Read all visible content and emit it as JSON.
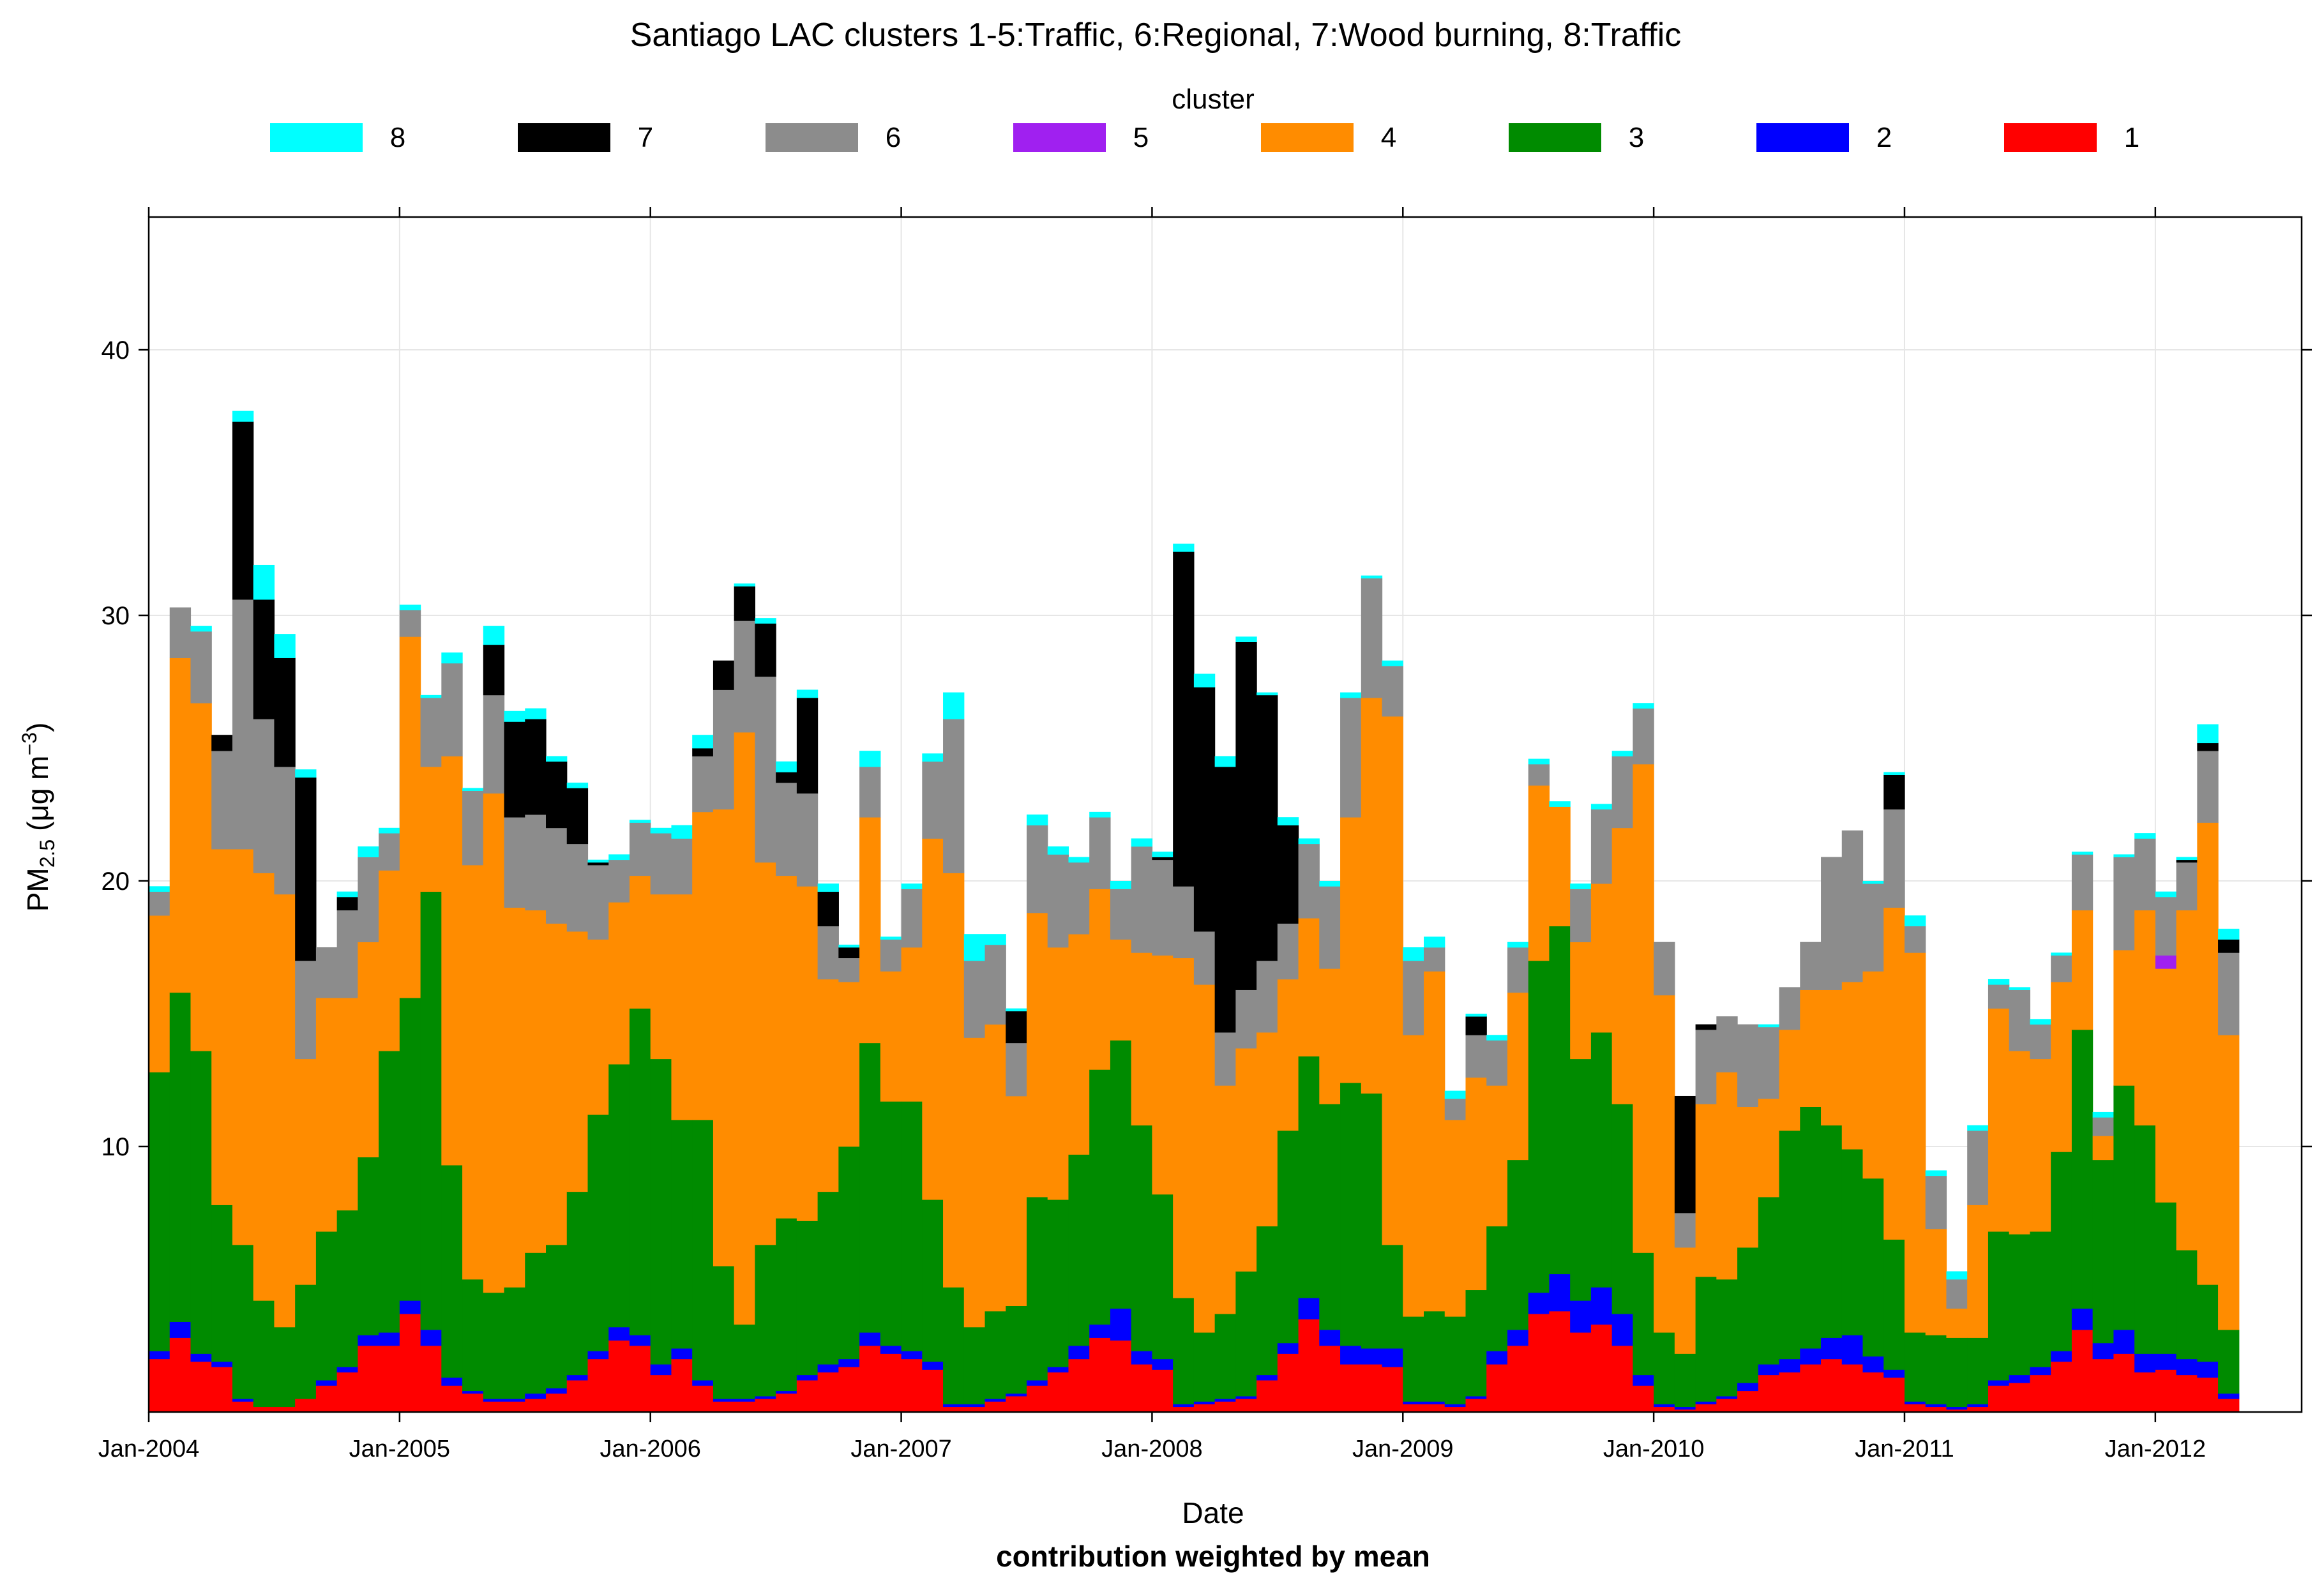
{
  "chart_data": {
    "type": "area",
    "title": "Santiago LAC clusters 1-5:Traffic, 6:Regional, 7:Wood burning, 8:Traffic",
    "xlabel": "Date",
    "subtitle": "contribution weighted by mean",
    "ylabel": {
      "main": "PM",
      "sub": "2.5",
      "units_pre": " (μg m",
      "units_sup": "−3",
      "units_post": ")"
    },
    "legend_title": "cluster",
    "legend_order": [
      "8",
      "7",
      "6",
      "5",
      "4",
      "3",
      "2",
      "1"
    ],
    "colors": {
      "1": "#FF0000",
      "2": "#0000FF",
      "3": "#008B00",
      "4": "#FF8C00",
      "5": "#A020F0",
      "6": "#8C8C8C",
      "7": "#000000",
      "8": "#00FFFF"
    },
    "x_ticks": [
      "Jan-2004",
      "Jan-2005",
      "Jan-2006",
      "Jan-2007",
      "Jan-2008",
      "Jan-2009",
      "Jan-2010",
      "Jan-2011",
      "Jan-2012"
    ],
    "xlim_months": [
      0,
      103
    ],
    "y_ticks": [
      10,
      20,
      30,
      40
    ],
    "ylim": [
      0,
      45
    ],
    "grid": true,
    "series": [
      {
        "name": "1",
        "values": [
          2.0,
          2.8,
          1.9,
          1.7,
          0.4,
          0.2,
          0.2,
          0.5,
          1.0,
          1.5,
          2.5,
          2.5,
          3.7,
          2.5,
          1.0,
          0.7,
          0.4,
          0.4,
          0.5,
          0.7,
          1.2,
          2.0,
          2.7,
          2.5,
          1.4,
          2.0,
          1.0,
          0.4,
          0.4,
          0.5,
          0.7,
          1.2,
          1.5,
          1.7,
          2.5,
          2.2,
          2.0,
          1.6,
          0.2,
          0.2,
          0.4,
          0.6,
          1.0,
          1.5,
          2.0,
          2.8,
          2.7,
          1.8,
          1.6,
          0.2,
          0.3,
          0.4,
          0.5,
          1.2,
          2.2,
          3.5,
          2.5,
          1.8,
          1.8,
          1.7,
          0.3,
          0.3,
          0.2,
          0.5,
          1.8,
          2.5,
          3.7,
          3.8,
          3.0,
          3.3,
          2.5,
          1.0,
          0.2,
          0.1,
          0.3,
          0.5,
          0.8,
          1.4,
          1.5,
          1.8,
          2.0,
          1.8,
          1.5,
          1.3,
          0.3,
          0.2,
          0.1,
          0.2,
          1.0,
          1.1,
          1.4,
          1.9,
          3.1,
          2.0,
          2.2,
          1.5,
          1.6,
          1.4,
          1.3,
          0.5
        ]
      },
      {
        "name": "2",
        "values": [
          0.3,
          0.6,
          0.3,
          0.2,
          0.1,
          0.0,
          0.0,
          0.0,
          0.2,
          0.2,
          0.4,
          0.5,
          0.5,
          0.6,
          0.3,
          0.1,
          0.1,
          0.1,
          0.2,
          0.2,
          0.2,
          0.3,
          0.5,
          0.4,
          0.4,
          0.4,
          0.2,
          0.1,
          0.1,
          0.1,
          0.1,
          0.2,
          0.3,
          0.3,
          0.5,
          0.3,
          0.3,
          0.3,
          0.1,
          0.1,
          0.1,
          0.1,
          0.2,
          0.2,
          0.5,
          0.5,
          1.2,
          0.5,
          0.4,
          0.1,
          0.1,
          0.1,
          0.1,
          0.2,
          0.4,
          0.8,
          0.6,
          0.7,
          0.6,
          0.7,
          0.1,
          0.1,
          0.1,
          0.1,
          0.5,
          0.6,
          0.8,
          1.4,
          1.2,
          1.4,
          1.2,
          0.4,
          0.1,
          0.1,
          0.1,
          0.1,
          0.3,
          0.4,
          0.5,
          0.6,
          0.8,
          1.1,
          0.6,
          0.3,
          0.1,
          0.1,
          0.1,
          0.1,
          0.2,
          0.3,
          0.3,
          0.4,
          0.8,
          0.6,
          0.9,
          0.7,
          0.6,
          0.6,
          0.6,
          0.2
        ]
      },
      {
        "name": "3",
        "values": [
          10.5,
          12.4,
          11.4,
          5.9,
          5.8,
          4.0,
          3.0,
          4.3,
          5.6,
          5.9,
          6.7,
          10.6,
          11.4,
          16.5,
          8.0,
          4.2,
          4.0,
          4.2,
          5.3,
          5.4,
          6.9,
          8.9,
          9.9,
          12.3,
          11.5,
          8.6,
          9.8,
          5.0,
          2.8,
          5.7,
          6.5,
          5.8,
          6.5,
          8.0,
          10.9,
          9.2,
          9.4,
          6.1,
          4.4,
          2.9,
          3.3,
          3.3,
          6.9,
          6.3,
          7.2,
          9.6,
          10.1,
          8.5,
          6.2,
          4.0,
          2.6,
          3.2,
          4.7,
          5.6,
          8.0,
          9.1,
          8.5,
          9.9,
          9.6,
          3.9,
          3.2,
          3.4,
          3.3,
          4.0,
          4.7,
          6.4,
          12.5,
          13.1,
          9.1,
          9.6,
          7.9,
          4.6,
          2.7,
          2.0,
          4.7,
          4.4,
          5.1,
          6.3,
          8.6,
          9.1,
          8.0,
          7.0,
          6.7,
          4.9,
          2.6,
          2.6,
          2.6,
          2.5,
          5.6,
          5.3,
          5.1,
          7.5,
          10.5,
          6.9,
          9.2,
          8.6,
          5.7,
          4.1,
          2.9,
          2.4
        ]
      },
      {
        "name": "4",
        "values": [
          5.9,
          12.6,
          13.1,
          13.4,
          14.9,
          16.1,
          16.3,
          8.5,
          8.8,
          8.0,
          8.1,
          6.8,
          13.6,
          4.7,
          15.4,
          15.6,
          18.8,
          14.3,
          12.9,
          12.1,
          9.8,
          6.6,
          6.1,
          5.0,
          6.2,
          8.5,
          11.6,
          17.2,
          22.3,
          14.4,
          12.9,
          12.6,
          8.0,
          6.2,
          8.5,
          4.9,
          5.8,
          13.6,
          15.6,
          10.9,
          10.8,
          7.9,
          10.7,
          9.5,
          8.3,
          6.8,
          3.8,
          6.5,
          9.0,
          12.8,
          13.1,
          8.6,
          8.4,
          7.3,
          5.7,
          5.2,
          5.1,
          10.0,
          14.9,
          19.9,
          10.6,
          12.8,
          7.4,
          8.0,
          5.3,
          6.3,
          6.6,
          4.5,
          4.4,
          5.6,
          10.4,
          18.4,
          12.7,
          4.0,
          6.5,
          7.8,
          5.3,
          3.7,
          3.8,
          4.4,
          5.1,
          6.3,
          7.8,
          12.5,
          14.3,
          4.0,
          1.1,
          5.0,
          8.4,
          6.9,
          6.5,
          6.4,
          4.5,
          0.9,
          5.1,
          8.1,
          8.8,
          12.8,
          17.4,
          11.1
        ]
      },
      {
        "name": "5",
        "values": [
          0,
          0,
          0,
          0,
          0,
          0,
          0,
          0,
          0,
          0,
          0,
          0,
          0,
          0,
          0,
          0,
          0,
          0,
          0,
          0,
          0,
          0,
          0,
          0,
          0,
          0,
          0,
          0,
          0,
          0,
          0,
          0,
          0,
          0,
          0,
          0,
          0,
          0,
          0,
          0,
          0,
          0,
          0,
          0,
          0,
          0,
          0,
          0,
          0,
          0,
          0,
          0,
          0,
          0,
          0,
          0,
          0,
          0,
          0,
          0,
          0,
          0,
          0,
          0,
          0,
          0,
          0,
          0,
          0,
          0,
          0,
          0,
          0,
          0,
          0,
          0,
          0,
          0,
          0,
          0,
          0,
          0,
          0,
          0,
          0,
          0,
          0,
          0,
          0,
          0,
          0,
          0,
          0,
          0,
          0,
          0.0,
          0.5,
          0,
          0,
          0
        ]
      },
      {
        "name": "6",
        "values": [
          0.9,
          1.9,
          2.7,
          3.7,
          9.4,
          5.8,
          4.8,
          3.7,
          1.9,
          3.3,
          3.2,
          1.4,
          1.0,
          2.6,
          3.5,
          2.8,
          3.7,
          3.4,
          3.6,
          3.6,
          3.3,
          2.8,
          1.6,
          2.0,
          2.3,
          2.1,
          2.1,
          4.5,
          4.2,
          7.0,
          3.5,
          3.5,
          2.0,
          0.9,
          1.9,
          1.2,
          2.2,
          2.9,
          5.8,
          2.9,
          3.0,
          2.0,
          3.3,
          3.5,
          2.7,
          2.7,
          1.9,
          4.0,
          3.6,
          2.7,
          2.0,
          2.0,
          2.2,
          2.7,
          2.1,
          2.8,
          3.1,
          4.5,
          4.5,
          1.9,
          2.8,
          0.9,
          0.8,
          1.6,
          1.7,
          1.7,
          0.8,
          0.0,
          2.0,
          2.8,
          2.7,
          2.1,
          2.0,
          1.3,
          2.8,
          2.1,
          3.1,
          2.7,
          1.6,
          1.8,
          5.0,
          5.7,
          3.3,
          3.7,
          1.0,
          2.0,
          1.1,
          2.8,
          0.9,
          2.3,
          1.3,
          1.0,
          2.1,
          0.7,
          3.5,
          2.7,
          2.2,
          1.8,
          2.7,
          3.1
        ]
      },
      {
        "name": "7",
        "values": [
          0,
          0,
          0,
          0.6,
          6.7,
          4.5,
          4.1,
          6.9,
          0,
          0.5,
          0,
          0,
          0,
          0,
          0,
          0,
          1.9,
          3.6,
          3.6,
          2.5,
          2.1,
          0.1,
          0,
          0,
          0,
          0,
          0.3,
          1.1,
          1.3,
          2.0,
          0.4,
          3.6,
          1.3,
          0.4,
          0,
          0,
          0,
          0,
          0,
          0,
          0,
          1.2,
          0,
          0,
          0,
          0,
          0,
          0,
          0.1,
          12.6,
          9.2,
          10.0,
          13.1,
          10.0,
          3.7,
          0,
          0,
          0,
          0,
          0,
          0,
          0,
          0,
          0.7,
          0,
          0,
          0,
          0,
          0,
          0,
          0,
          0,
          0,
          4.4,
          0.2,
          0,
          0,
          0,
          0,
          0,
          0,
          0,
          0,
          1.3,
          0,
          0,
          0,
          0,
          0,
          0,
          0,
          0,
          0,
          0,
          0,
          0,
          0,
          0.1,
          0.3,
          0.5
        ]
      },
      {
        "name": "8",
        "values": [
          0.2,
          0,
          0.2,
          0,
          0.4,
          1.3,
          0.9,
          0.3,
          0,
          0.2,
          0.4,
          0.2,
          0.2,
          0.1,
          0.4,
          0.1,
          0.7,
          0.4,
          0.4,
          0.2,
          0.2,
          0.1,
          0.2,
          0.1,
          0.2,
          0.5,
          0.5,
          0,
          0.1,
          0.2,
          0.4,
          0.3,
          0.3,
          0.1,
          0.6,
          0.1,
          0.2,
          0.3,
          1.0,
          1.0,
          0.4,
          0.1,
          0.4,
          0.3,
          0.2,
          0.2,
          0.3,
          0.3,
          0.2,
          0.3,
          0.5,
          0.4,
          0.2,
          0.1,
          0.3,
          0.2,
          0.2,
          0.2,
          0.1,
          0.2,
          0.5,
          0.4,
          0.3,
          0.1,
          0.2,
          0.2,
          0.2,
          0.2,
          0.2,
          0.2,
          0.2,
          0.2,
          0,
          0,
          0,
          0,
          0,
          0.1,
          0,
          0,
          0,
          0,
          0.1,
          0.1,
          0.4,
          0.2,
          0.3,
          0.2,
          0.2,
          0.1,
          0.2,
          0.1,
          0.1,
          0.2,
          0.1,
          0.2,
          0.2,
          0.1,
          0.7,
          0.4
        ]
      }
    ]
  }
}
